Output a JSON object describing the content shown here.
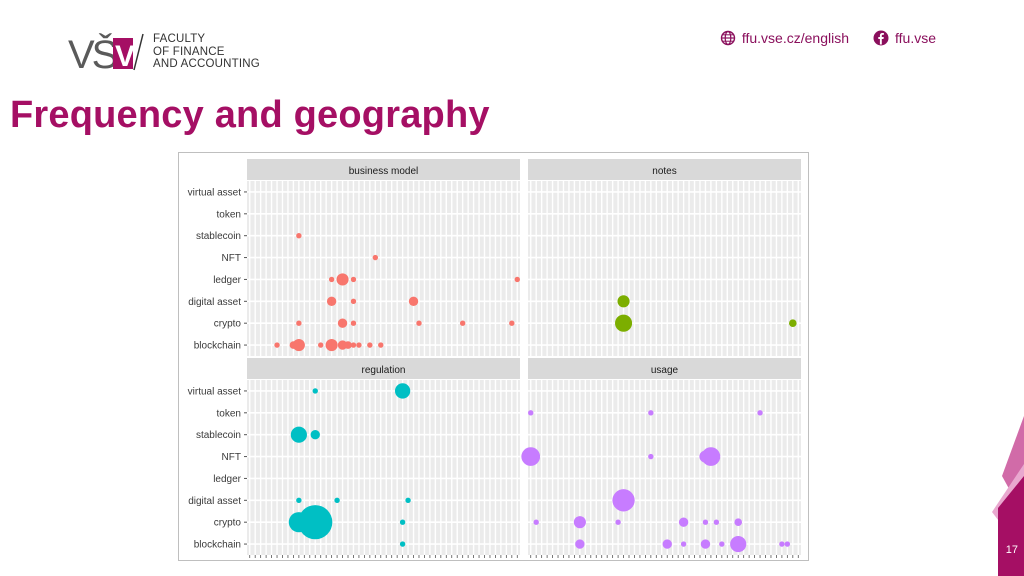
{
  "header": {
    "logo_mark": "VŠE",
    "logo_lines": [
      "FACULTY",
      "OF FINANCE",
      "AND ACCOUNTING"
    ],
    "website": "ffu.vse.cz/english",
    "facebook": "ffu.vse"
  },
  "slide": {
    "title": "Frequency and geography",
    "page_number": "17"
  },
  "colors": {
    "brand": "#a50f64",
    "business_model": "#F8766D",
    "notes": "#7CAE00",
    "regulation": "#00BFC4",
    "usage": "#C77CFF"
  },
  "chart_data": {
    "type": "scatter",
    "title": "",
    "y_categories": [
      "virtual asset",
      "token",
      "stablecoin",
      "NFT",
      "ledger",
      "digital asset",
      "crypto",
      "blockchain"
    ],
    "x_slots": 50,
    "xlim": [
      0,
      50
    ],
    "grid": true,
    "panels": [
      {
        "name": "business model",
        "color": "#F8766D",
        "points": [
          {
            "x": 9,
            "y": "stablecoin",
            "size": 1
          },
          {
            "x": 23,
            "y": "NFT",
            "size": 1
          },
          {
            "x": 15,
            "y": "ledger",
            "size": 1
          },
          {
            "x": 17,
            "y": "ledger",
            "size": 5
          },
          {
            "x": 19,
            "y": "ledger",
            "size": 1
          },
          {
            "x": 49,
            "y": "ledger",
            "size": 1
          },
          {
            "x": 15,
            "y": "digital asset",
            "size": 3
          },
          {
            "x": 19,
            "y": "digital asset",
            "size": 1
          },
          {
            "x": 30,
            "y": "digital asset",
            "size": 3
          },
          {
            "x": 9,
            "y": "crypto",
            "size": 1
          },
          {
            "x": 17,
            "y": "crypto",
            "size": 3
          },
          {
            "x": 19,
            "y": "crypto",
            "size": 1
          },
          {
            "x": 31,
            "y": "crypto",
            "size": 1
          },
          {
            "x": 39,
            "y": "crypto",
            "size": 1
          },
          {
            "x": 48,
            "y": "crypto",
            "size": 1
          },
          {
            "x": 5,
            "y": "blockchain",
            "size": 1
          },
          {
            "x": 8,
            "y": "blockchain",
            "size": 2
          },
          {
            "x": 9,
            "y": "blockchain",
            "size": 5
          },
          {
            "x": 13,
            "y": "blockchain",
            "size": 1
          },
          {
            "x": 15,
            "y": "blockchain",
            "size": 5
          },
          {
            "x": 17,
            "y": "blockchain",
            "size": 3
          },
          {
            "x": 18,
            "y": "blockchain",
            "size": 2
          },
          {
            "x": 19,
            "y": "blockchain",
            "size": 1
          },
          {
            "x": 20,
            "y": "blockchain",
            "size": 1
          },
          {
            "x": 22,
            "y": "blockchain",
            "size": 1
          },
          {
            "x": 24,
            "y": "blockchain",
            "size": 1
          }
        ]
      },
      {
        "name": "notes",
        "color": "#7CAE00",
        "points": [
          {
            "x": 17,
            "y": "digital asset",
            "size": 5
          },
          {
            "x": 17,
            "y": "crypto",
            "size": 10
          },
          {
            "x": 48,
            "y": "crypto",
            "size": 2
          }
        ]
      },
      {
        "name": "regulation",
        "color": "#00BFC4",
        "points": [
          {
            "x": 12,
            "y": "virtual asset",
            "size": 1
          },
          {
            "x": 28,
            "y": "virtual asset",
            "size": 8
          },
          {
            "x": 9,
            "y": "stablecoin",
            "size": 9
          },
          {
            "x": 12,
            "y": "stablecoin",
            "size": 3
          },
          {
            "x": 9,
            "y": "digital asset",
            "size": 1
          },
          {
            "x": 16,
            "y": "digital asset",
            "size": 1
          },
          {
            "x": 29,
            "y": "digital asset",
            "size": 1
          },
          {
            "x": 9,
            "y": "crypto",
            "size": 14
          },
          {
            "x": 12,
            "y": "crypto",
            "size": 40
          },
          {
            "x": 28,
            "y": "crypto",
            "size": 1
          },
          {
            "x": 28,
            "y": "blockchain",
            "size": 1
          }
        ]
      },
      {
        "name": "usage",
        "color": "#C77CFF",
        "points": [
          {
            "x": 0,
            "y": "token",
            "size": 1
          },
          {
            "x": 22,
            "y": "token",
            "size": 1
          },
          {
            "x": 42,
            "y": "token",
            "size": 1
          },
          {
            "x": 0,
            "y": "NFT",
            "size": 12
          },
          {
            "x": 22,
            "y": "NFT",
            "size": 1
          },
          {
            "x": 32,
            "y": "NFT",
            "size": 5
          },
          {
            "x": 33,
            "y": "NFT",
            "size": 12
          },
          {
            "x": 17,
            "y": "digital asset",
            "size": 17
          },
          {
            "x": 1,
            "y": "crypto",
            "size": 1
          },
          {
            "x": 9,
            "y": "crypto",
            "size": 5
          },
          {
            "x": 16,
            "y": "crypto",
            "size": 1
          },
          {
            "x": 28,
            "y": "crypto",
            "size": 3
          },
          {
            "x": 32,
            "y": "crypto",
            "size": 1
          },
          {
            "x": 34,
            "y": "crypto",
            "size": 1
          },
          {
            "x": 38,
            "y": "crypto",
            "size": 2
          },
          {
            "x": 9,
            "y": "blockchain",
            "size": 3
          },
          {
            "x": 25,
            "y": "blockchain",
            "size": 3
          },
          {
            "x": 28,
            "y": "blockchain",
            "size": 1
          },
          {
            "x": 32,
            "y": "blockchain",
            "size": 3
          },
          {
            "x": 35,
            "y": "blockchain",
            "size": 1
          },
          {
            "x": 38,
            "y": "blockchain",
            "size": 9
          },
          {
            "x": 46,
            "y": "blockchain",
            "size": 1
          },
          {
            "x": 47,
            "y": "blockchain",
            "size": 1
          }
        ]
      }
    ]
  }
}
